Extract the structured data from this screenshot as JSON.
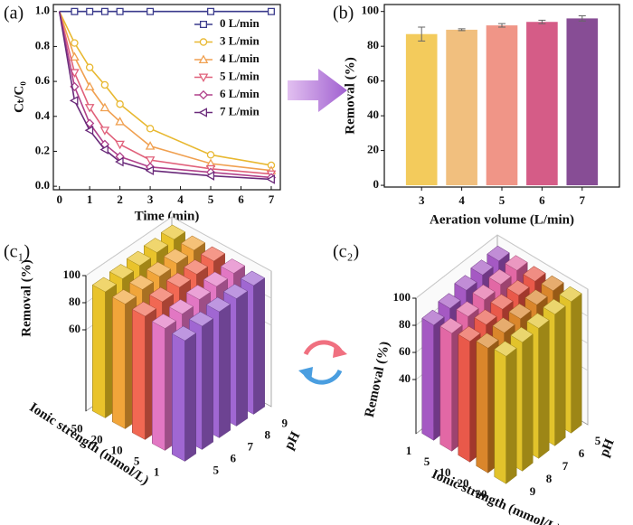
{
  "chart_data": [
    {
      "type": "line",
      "panel": "(a)",
      "xlabel": "Time (min)",
      "ylabel": "Cₜ/C₀",
      "x": [
        0,
        0.5,
        1,
        1.5,
        2,
        3,
        5,
        7
      ],
      "xlim": [
        -0.2,
        7.3
      ],
      "xticks": [
        0,
        1,
        2,
        3,
        4,
        5,
        6,
        7
      ],
      "ylim": [
        -0.02,
        1.04
      ],
      "yticks": [
        {
          "value": 0,
          "label": "0.0"
        },
        {
          "value": 0.2,
          "label": "0.2"
        },
        {
          "value": 0.4,
          "label": "0.4"
        },
        {
          "value": 0.6,
          "label": "0.6"
        },
        {
          "value": 0.8,
          "label": "0.8"
        },
        {
          "value": 1,
          "label": "1.0"
        }
      ],
      "legend": "upper right",
      "series": [
        {
          "name": "0 L/min",
          "color": "#3a3a8c",
          "marker": "square",
          "values": [
            1.0,
            1.0,
            1.0,
            1.0,
            1.0,
            1.0,
            1.0,
            1.0
          ]
        },
        {
          "name": "3 L/min",
          "color": "#e8b830",
          "marker": "circle",
          "values": [
            1.0,
            0.82,
            0.68,
            0.58,
            0.47,
            0.33,
            0.18,
            0.12
          ]
        },
        {
          "name": "4 L/min",
          "color": "#f0a050",
          "marker": "triangle-up",
          "values": [
            1.0,
            0.74,
            0.57,
            0.45,
            0.37,
            0.23,
            0.13,
            0.09
          ]
        },
        {
          "name": "5 L/min",
          "color": "#e0607a",
          "marker": "triangle-down",
          "values": [
            1.0,
            0.65,
            0.45,
            0.32,
            0.24,
            0.15,
            0.1,
            0.07
          ]
        },
        {
          "name": "6 L/min",
          "color": "#b0408a",
          "marker": "diamond",
          "values": [
            1.0,
            0.57,
            0.36,
            0.24,
            0.17,
            0.11,
            0.08,
            0.05
          ]
        },
        {
          "name": "7 L/min",
          "color": "#6a2a7a",
          "marker": "triangle-left",
          "values": [
            1.0,
            0.49,
            0.32,
            0.21,
            0.14,
            0.09,
            0.06,
            0.04
          ]
        }
      ]
    },
    {
      "type": "bar",
      "panel": "(b)",
      "xlabel": "Aeration volume (L/min)",
      "ylabel": "Removal (%)",
      "categories": [
        "3",
        "4",
        "5",
        "6",
        "7"
      ],
      "values": [
        87,
        89.5,
        92,
        94,
        96
      ],
      "errors": [
        4,
        0.5,
        1,
        1,
        1.5
      ],
      "colors": [
        "#f2c54a",
        "#f0b870",
        "#ee8a7a",
        "#d04a7a",
        "#7a3a8a"
      ],
      "ylim": [
        -1,
        104
      ],
      "yticks": [
        0,
        20,
        40,
        60,
        80,
        100
      ]
    },
    {
      "type": "bar3d",
      "panel": "(c₁)",
      "zlabel": "Removal (%)",
      "x_label": "pH",
      "y_label": "Ionic strength (mmol/L)",
      "x_categories": [
        "5",
        "6",
        "7",
        "8",
        "9"
      ],
      "y_categories": [
        "1",
        "5",
        "10",
        "20",
        "50"
      ],
      "colors": [
        "#9b5fd0",
        "#e070c0",
        "#f0604a",
        "#f0a030",
        "#e8c020"
      ],
      "zlim": [
        0,
        100
      ],
      "zticks": [
        60,
        80,
        100
      ],
      "values": [
        [
          89,
          91,
          93,
          94,
          95
        ],
        [
          90,
          92,
          94,
          95,
          96
        ],
        [
          91,
          93,
          95,
          96,
          97
        ],
        [
          92,
          94,
          95,
          96,
          97
        ],
        [
          93,
          94,
          95,
          96,
          97
        ]
      ]
    },
    {
      "type": "bar3d",
      "panel": "(c₂)",
      "zlabel": "Removal (%)",
      "x_label": "pH",
      "y_label": "Ionic strength (mmol/L)",
      "x_categories": [
        "5",
        "6",
        "7",
        "8",
        "9"
      ],
      "y_categories": [
        "1",
        "5",
        "10",
        "20",
        "50"
      ],
      "colors": [
        "#a050c0",
        "#e060a0",
        "#e85040",
        "#d88020",
        "#e0c020"
      ],
      "zlim": [
        0,
        100
      ],
      "zticks": [
        40,
        60,
        80,
        100
      ],
      "values": [
        [
          95,
          94,
          92,
          88,
          85
        ],
        [
          96,
          95,
          93,
          90,
          87
        ],
        [
          96,
          95,
          94,
          92,
          89
        ],
        [
          97,
          96,
          95,
          94,
          92
        ],
        [
          97,
          97,
          96,
          95,
          94
        ]
      ]
    }
  ]
}
